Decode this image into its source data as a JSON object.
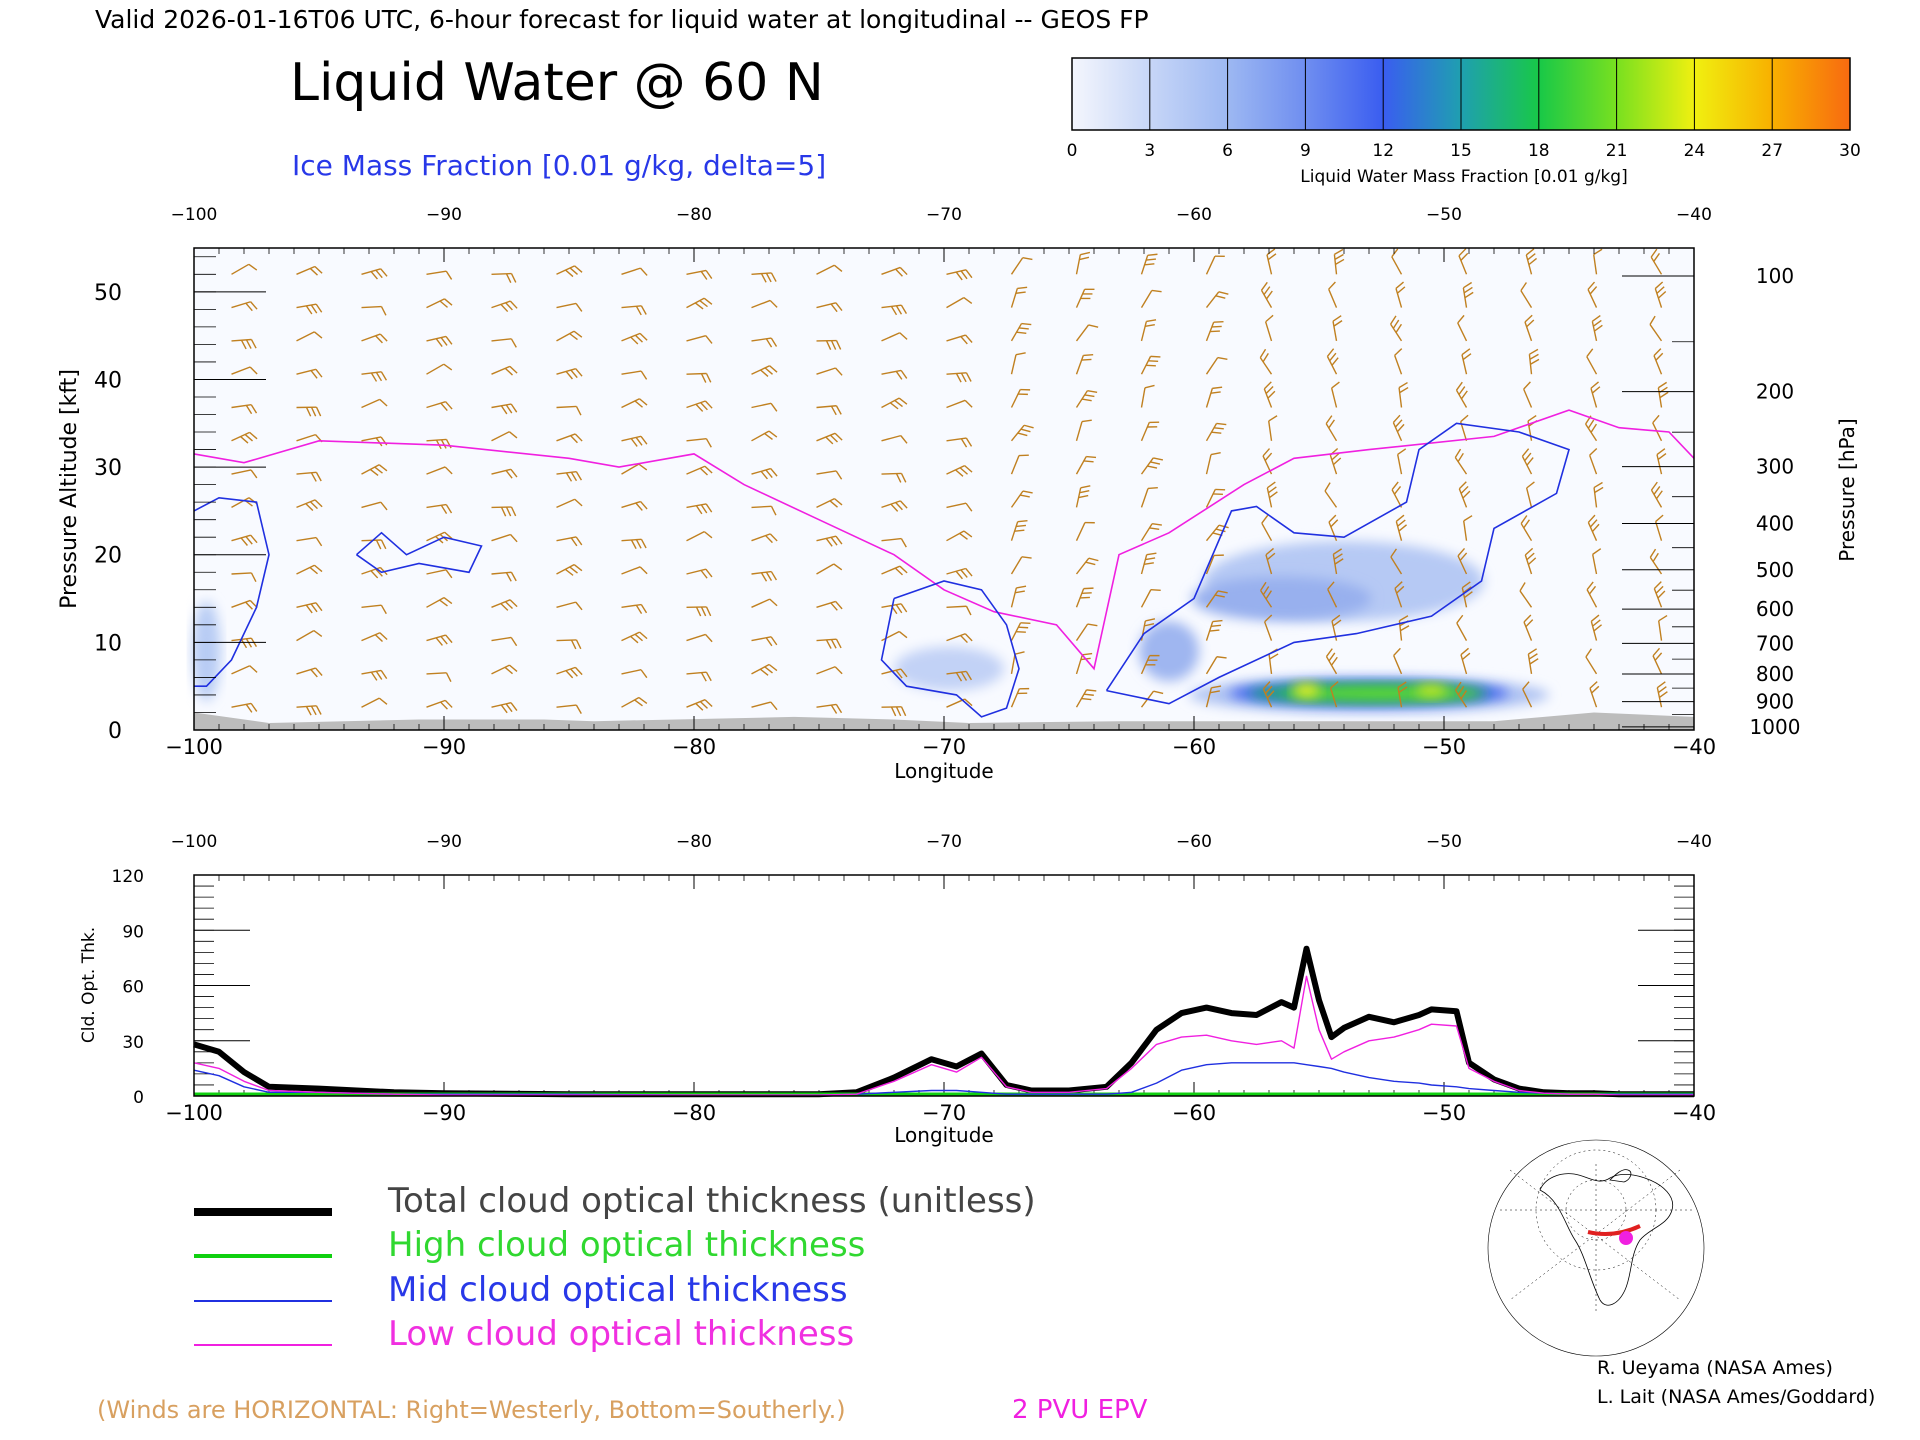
{
  "header": {
    "valid_line": "Valid 2026-01-16T06 UTC, 6-hour forecast for liquid water at longitudinal -- GEOS FP",
    "title": "Liquid Water @ 60 N",
    "subtitle": "Ice Mass Fraction [0.01 g/kg, delta=5]"
  },
  "colorbar": {
    "ticks": [
      "0",
      "3",
      "6",
      "9",
      "12",
      "15",
      "18",
      "21",
      "24",
      "27",
      "30"
    ],
    "label": "Liquid Water Mass Fraction [0.01 g/kg]",
    "colors": [
      "#f4f6fd",
      "#c7d6f7",
      "#9db8f2",
      "#6f8ef0",
      "#3a5df0",
      "#1f9fb0",
      "#18c848",
      "#78e020",
      "#f0f010",
      "#f8b000",
      "#f86a10"
    ]
  },
  "top_panel": {
    "x_ticks": [
      "-100",
      "-90",
      "-80",
      "-70",
      "-60",
      "-50",
      "-40"
    ],
    "y_ticks": [
      "0",
      "10",
      "20",
      "30",
      "40",
      "50"
    ],
    "pressure_ticks": [
      "100",
      "200",
      "300",
      "400",
      "500",
      "600",
      "700",
      "800",
      "900",
      "1000"
    ],
    "xlabel": "Longitude",
    "ylabel": "Pressure Altitude [kft]",
    "y2label": "Pressure [hPa]"
  },
  "bottom_panel": {
    "x_ticks": [
      "-100",
      "-90",
      "-80",
      "-70",
      "-60",
      "-50",
      "-40"
    ],
    "y_ticks": [
      "0",
      "30",
      "60",
      "90",
      "120"
    ],
    "xlabel": "Longitude",
    "ylabel": "Cld. Opt. Thk."
  },
  "legend": {
    "total": "Total cloud optical thickness (unitless)",
    "high": "High cloud optical thickness",
    "mid": "Mid cloud optical thickness",
    "low": "Low cloud optical thickness",
    "colors": {
      "total": "#000000",
      "high": "#10d010",
      "mid": "#2030e0",
      "low": "#f020e0"
    }
  },
  "footer": {
    "winds_note": "(Winds are HORIZONTAL: Right=Westerly, Bottom=Southerly.)",
    "epv_label": "2 PVU EPV",
    "credit1": "R. Ueyama (NASA Ames)",
    "credit2": "L. Lait (NASA Ames/Goddard)"
  },
  "chart_data": [
    {
      "type": "line",
      "title": "",
      "xlabel": "Longitude",
      "ylabel": "Pressure Altitude [kft]",
      "xlim": [
        -100,
        -40
      ],
      "ylim": [
        0,
        55
      ],
      "series": [
        {
          "name": "2 PVU EPV",
          "points": [
            [
              -100,
              31.5
            ],
            [
              -98,
              30.5
            ],
            [
              -95,
              33
            ],
            [
              -90,
              32.5
            ],
            [
              -85,
              31
            ],
            [
              -83,
              30
            ],
            [
              -80,
              31.5
            ],
            [
              -78,
              28
            ],
            [
              -75,
              24
            ],
            [
              -72,
              20
            ],
            [
              -70,
              16
            ],
            [
              -68,
              13.5
            ],
            [
              -65.5,
              12
            ],
            [
              -64,
              7
            ],
            [
              -63,
              20
            ],
            [
              -61,
              22.5
            ],
            [
              -58,
              28
            ],
            [
              -56,
              31
            ],
            [
              -53,
              32
            ],
            [
              -48,
              33.5
            ],
            [
              -45,
              36.5
            ],
            [
              -43,
              34.5
            ],
            [
              -41,
              34
            ],
            [
              -40,
              31
            ]
          ]
        },
        {
          "name": "Ice Mass Fraction 5",
          "points": [
            [
              -100,
              25
            ],
            [
              -99,
              26.5
            ],
            [
              -97.5,
              26
            ],
            [
              -97,
              20
            ],
            [
              -97.5,
              14
            ],
            [
              -98.5,
              8
            ],
            [
              -99.5,
              5
            ],
            [
              -100,
              5
            ]
          ]
        },
        {
          "name": "Ice Mass Fraction 5",
          "points": [
            [
              -93.5,
              20
            ],
            [
              -92.5,
              22.5
            ],
            [
              -91.5,
              20
            ],
            [
              -90,
              22
            ],
            [
              -88.5,
              21
            ],
            [
              -89,
              18
            ],
            [
              -91,
              19
            ],
            [
              -92.5,
              18
            ],
            [
              -93.5,
              20
            ]
          ]
        },
        {
          "name": "Ice Mass Fraction 5",
          "points": [
            [
              -72,
              15
            ],
            [
              -70,
              17
            ],
            [
              -68.5,
              16
            ],
            [
              -67.5,
              12
            ],
            [
              -67,
              7
            ],
            [
              -67.5,
              2.5
            ],
            [
              -68.5,
              1.5
            ],
            [
              -69.5,
              4
            ],
            [
              -71.5,
              5
            ],
            [
              -72.5,
              8
            ],
            [
              -72,
              15
            ]
          ]
        },
        {
          "name": "Ice Mass Fraction 5",
          "points": [
            [
              -63.5,
              4.5
            ],
            [
              -62,
              11
            ],
            [
              -60,
              15
            ],
            [
              -58.5,
              25
            ],
            [
              -57.5,
              25.5
            ],
            [
              -56,
              22.5
            ],
            [
              -54,
              22
            ],
            [
              -51.5,
              26
            ],
            [
              -51,
              32
            ],
            [
              -49.5,
              35
            ],
            [
              -47,
              34
            ],
            [
              -45,
              32
            ],
            [
              -45.5,
              27
            ],
            [
              -48,
              23
            ],
            [
              -48.5,
              17
            ],
            [
              -50.5,
              13
            ],
            [
              -53.5,
              11
            ],
            [
              -56,
              10
            ],
            [
              -59,
              6
            ],
            [
              -61,
              3
            ],
            [
              -63.5,
              4.5
            ]
          ]
        }
      ]
    },
    {
      "type": "line",
      "title": "",
      "xlabel": "Longitude",
      "ylabel": "Cld. Opt. Thk.",
      "xlim": [
        -100,
        -40
      ],
      "ylim": [
        0,
        120
      ],
      "x": [
        -100,
        -99,
        -98,
        -97,
        -95,
        -92,
        -90,
        -85,
        -80,
        -75,
        -73.5,
        -72,
        -70.5,
        -69.5,
        -68.5,
        -67.5,
        -66.5,
        -65,
        -63.5,
        -62.5,
        -61.5,
        -60.5,
        -59.5,
        -58.5,
        -57.5,
        -56.5,
        -56,
        -55.5,
        -55,
        -54.5,
        -54,
        -53,
        -52,
        -51,
        -50.5,
        -49.5,
        -49,
        -48,
        -47,
        -46,
        -45,
        -44,
        -43,
        -42,
        -41,
        -40
      ],
      "series": [
        {
          "name": "Total cloud optical thickness (unitless)",
          "values": [
            28,
            24,
            13,
            5,
            4,
            2,
            1.5,
            1,
            1,
            1,
            2,
            10,
            20,
            16,
            23,
            6,
            3,
            3,
            5,
            18,
            36,
            45,
            48,
            45,
            44,
            51,
            48,
            80,
            52,
            32,
            37,
            43,
            40,
            44,
            47,
            46,
            18,
            9,
            4,
            2,
            1.5,
            1.5,
            1,
            1,
            1,
            1
          ]
        },
        {
          "name": "High cloud optical thickness",
          "values": [
            1,
            1,
            1,
            1,
            1,
            1,
            1,
            1,
            1,
            1,
            1,
            1,
            1,
            1,
            1,
            1,
            1,
            1,
            1,
            1,
            1,
            1,
            1,
            1,
            1,
            1,
            1,
            1,
            1,
            1,
            1,
            1,
            1,
            1,
            1,
            1,
            1,
            1,
            1,
            1,
            1,
            1,
            1,
            1,
            1,
            1
          ]
        },
        {
          "name": "Mid cloud optical thickness",
          "values": [
            14,
            11,
            5,
            2,
            2,
            1,
            1,
            1,
            0.5,
            0.5,
            1,
            2,
            3,
            3,
            2,
            1,
            1,
            1,
            1,
            2,
            7,
            14,
            17,
            18,
            18,
            18,
            18,
            17,
            16,
            15,
            13,
            10,
            8,
            7,
            6,
            5,
            4,
            3,
            2,
            1.5,
            1,
            1,
            1,
            1,
            1,
            1
          ]
        },
        {
          "name": "Low cloud optical thickness",
          "values": [
            18,
            15,
            8,
            3,
            2,
            1,
            0.5,
            0.5,
            0.5,
            0.5,
            1,
            8,
            17,
            13,
            21,
            5,
            2,
            2,
            4,
            15,
            28,
            32,
            33,
            30,
            28,
            30,
            26,
            65,
            36,
            20,
            24,
            30,
            32,
            36,
            39,
            38,
            15,
            8,
            3,
            1.5,
            1,
            1,
            0.5,
            0.5,
            0.5,
            0.5
          ]
        }
      ]
    }
  ]
}
